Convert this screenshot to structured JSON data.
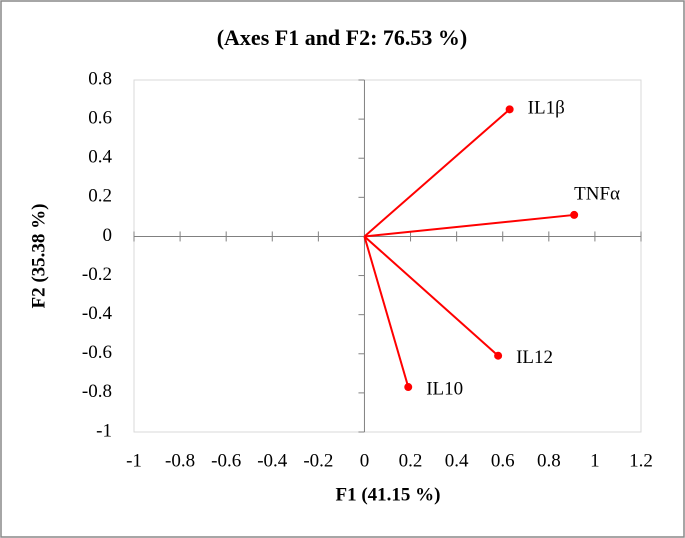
{
  "chart_data": {
    "type": "scatter",
    "title": "(Axes F1 and F2: 76.53 %)",
    "x_label": "F1 (41.15 %)",
    "y_label": "F2 (35.38 %)",
    "labels": [
      "IL1β",
      "TNFα",
      "IL12",
      "IL10"
    ],
    "x": [
      0.63,
      0.91,
      0.58,
      0.19
    ],
    "values": [
      0.65,
      0.11,
      -0.61,
      -0.77
    ],
    "color": "#ff0000",
    "xlim": [
      -1,
      1.2
    ],
    "ylim": [
      -1,
      0.8
    ],
    "xticks": [
      -1,
      -0.8,
      -0.6,
      -0.4,
      -0.2,
      0,
      0.2,
      0.4,
      0.6,
      0.8,
      1,
      1.2
    ],
    "yticks": [
      -1,
      -0.8,
      -0.6,
      -0.4,
      -0.2,
      0,
      0.2,
      0.4,
      0.6,
      0.8
    ]
  }
}
